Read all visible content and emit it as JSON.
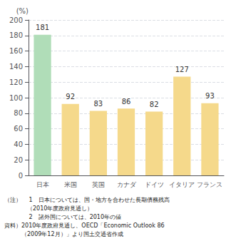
{
  "chart_data": {
    "type": "bar",
    "categories": [
      "日本",
      "米国",
      "英国",
      "カナダ",
      "ドイツ",
      "イタリア",
      "フランス"
    ],
    "values": [
      181,
      92,
      83,
      86,
      82,
      127,
      93
    ],
    "colors": [
      "#b0ddb8",
      "#f5d98b",
      "#f5d98b",
      "#f5d98b",
      "#f5d98b",
      "#f5d98b",
      "#f5d98b"
    ],
    "ylim": [
      0,
      200
    ],
    "yticks": [
      0,
      20,
      40,
      60,
      80,
      100,
      120,
      140,
      160,
      180,
      200
    ],
    "ylabel": "(%)",
    "grid": true,
    "data_labels": true,
    "annotations": [
      "（注）　 1　日本については、国・地方を合わせた長期債務残高",
      "　　　　（2010年度政府見通し）",
      "　　　　 2　諸外国については、2010年の値",
      "資料）2010年度政府見通し、OECD「Economic Outlook 86",
      "　　　（2009年12月）」より国土交通省作成"
    ]
  }
}
